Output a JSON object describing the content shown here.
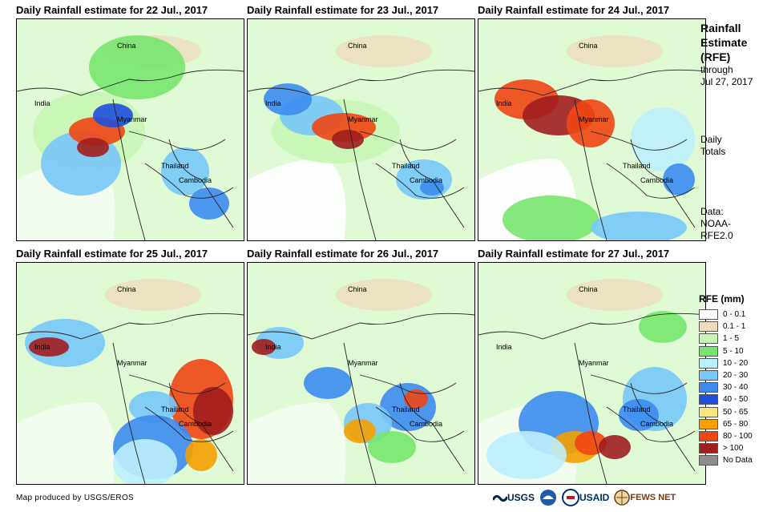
{
  "panels": [
    {
      "title": "Daily Rainfall estimate for 22 Jul., 2017"
    },
    {
      "title": "Daily Rainfall estimate for 23 Jul., 2017"
    },
    {
      "title": "Daily Rainfall estimate for 24 Jul., 2017"
    },
    {
      "title": "Daily Rainfall estimate for 25 Jul., 2017"
    },
    {
      "title": "Daily Rainfall estimate for 26 Jul., 2017"
    },
    {
      "title": "Daily Rainfall estimate for 27 Jul., 2017"
    }
  ],
  "map_labels": {
    "china": "China",
    "india": "India",
    "myanmar": "Myanmar",
    "thailand": "Thailand",
    "cambodia": "Cambodia"
  },
  "side": {
    "title_line1": "Rainfall",
    "title_line2": "Estimate",
    "title_line3": "(RFE)",
    "through": "through",
    "date": "Jul 27, 2017",
    "daily1": "Daily",
    "daily2": "Totals",
    "data1": "Data:",
    "data2": "NOAA-",
    "data3": "RFE2.0"
  },
  "legend": {
    "title": "RFE (mm)",
    "items": [
      {
        "label": "0 - 0.1",
        "color": "#ffffff"
      },
      {
        "label": "0.1 - 1",
        "color": "#eedcbf"
      },
      {
        "label": "1 - 5",
        "color": "#c8f5b4"
      },
      {
        "label": "5 - 10",
        "color": "#78e66e"
      },
      {
        "label": "10 - 20",
        "color": "#bceefc"
      },
      {
        "label": "20 - 30",
        "color": "#78c8f8"
      },
      {
        "label": "30 - 40",
        "color": "#3c8cf0"
      },
      {
        "label": "40 - 50",
        "color": "#1e50dc"
      },
      {
        "label": "50 - 65",
        "color": "#fae678"
      },
      {
        "label": "65 - 80",
        "color": "#f5a000"
      },
      {
        "label": "80 - 100",
        "color": "#f04614"
      },
      {
        "label": "> 100",
        "color": "#a01e1e"
      },
      {
        "label": "No Data",
        "color": "#8c8c8c"
      }
    ]
  },
  "credit": "Map produced by USGS/EROS",
  "logos": {
    "usgs": "USGS",
    "usaid": "USAID",
    "fews": "FEWS NET"
  }
}
